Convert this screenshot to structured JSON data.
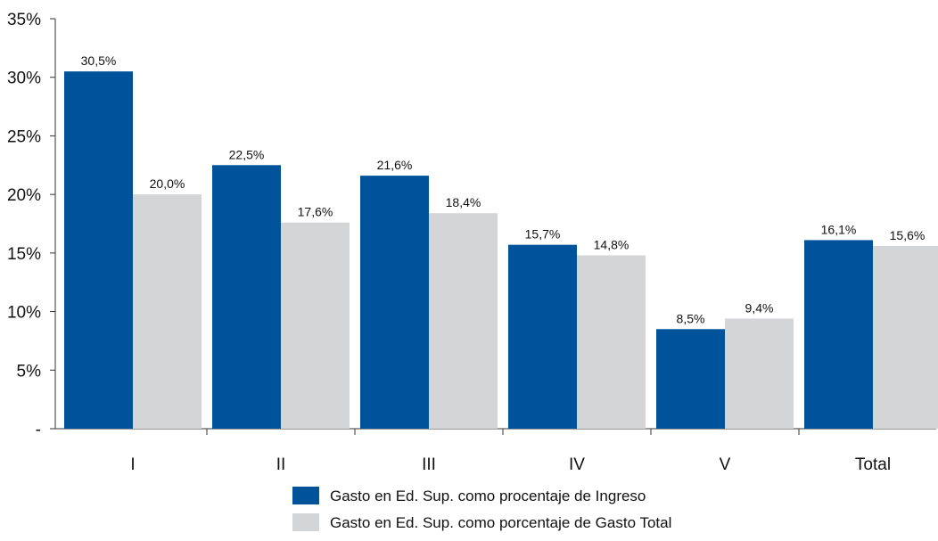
{
  "chart_data": {
    "type": "bar",
    "categories": [
      "I",
      "II",
      "III",
      "IV",
      "V",
      "Total"
    ],
    "series": [
      {
        "name": "Gasto en Ed. Sup. como procentaje de Ingreso",
        "values": [
          30.5,
          22.5,
          21.6,
          15.7,
          8.5,
          16.1
        ],
        "labels": [
          "30,5%",
          "22,5%",
          "21,6%",
          "15,7%",
          "8,5%",
          "16,1%"
        ],
        "color": "#00529b"
      },
      {
        "name": "Gasto en Ed. Sup. como porcentaje de Gasto Total",
        "values": [
          20.0,
          17.6,
          18.4,
          14.8,
          9.4,
          15.6
        ],
        "labels": [
          "20,0%",
          "17,6%",
          "18,4%",
          "14,8%",
          "9,4%",
          "15,6%"
        ],
        "color": "#d4d5d7"
      }
    ],
    "ylim": [
      0,
      35
    ],
    "yticks": [
      0,
      5,
      10,
      15,
      20,
      25,
      30,
      35
    ],
    "ytick_labels": [
      "-",
      "5%",
      "10%",
      "15%",
      "20%",
      "25%",
      "30%",
      "35%"
    ],
    "grid": false,
    "legend_position": "bottom-center"
  }
}
